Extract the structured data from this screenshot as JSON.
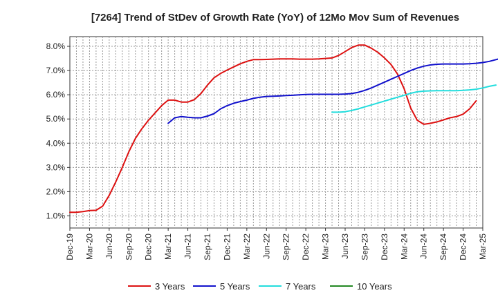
{
  "chart_data": {
    "type": "line",
    "title": "[7264]  Trend of StDev of Growth Rate (YoY) of 12Mo Mov Sum of Revenues",
    "xlabel": "",
    "ylabel": "",
    "ylim": [
      0.5,
      8.4
    ],
    "yticks": [
      1.0,
      2.0,
      3.0,
      4.0,
      5.0,
      6.0,
      7.0,
      8.0
    ],
    "ytick_labels": [
      "1.0%",
      "2.0%",
      "3.0%",
      "4.0%",
      "5.0%",
      "6.0%",
      "7.0%",
      "8.0%"
    ],
    "x_tick_labels": [
      "Dec-19",
      "Mar-20",
      "Jun-20",
      "Sep-20",
      "Dec-20",
      "Mar-21",
      "Jun-21",
      "Sep-21",
      "Dec-21",
      "Mar-22",
      "Jun-22",
      "Sep-22",
      "Dec-22",
      "Mar-23",
      "Jun-23",
      "Sep-23",
      "Dec-23",
      "Mar-24",
      "Jun-24",
      "Sep-24",
      "Dec-24",
      "Mar-25"
    ],
    "x_range_months": [
      0,
      63
    ],
    "grid": true,
    "legend_position": "bottom",
    "series": [
      {
        "name": "3 Years",
        "color": "#dd1111",
        "start_month": 0,
        "values": [
          1.15,
          1.15,
          1.18,
          1.22,
          1.23,
          1.4,
          1.85,
          2.4,
          3.0,
          3.65,
          4.2,
          4.6,
          4.95,
          5.25,
          5.55,
          5.78,
          5.78,
          5.7,
          5.7,
          5.8,
          6.05,
          6.4,
          6.7,
          6.88,
          7.02,
          7.15,
          7.28,
          7.38,
          7.45,
          7.45,
          7.46,
          7.47,
          7.48,
          7.48,
          7.48,
          7.47,
          7.47,
          7.47,
          7.48,
          7.5,
          7.52,
          7.62,
          7.78,
          7.95,
          8.05,
          8.05,
          7.92,
          7.75,
          7.52,
          7.25,
          6.85,
          6.25,
          5.45,
          4.95,
          4.78,
          4.82,
          4.88,
          4.96,
          5.05,
          5.1,
          5.2,
          5.42,
          5.75
        ]
      },
      {
        "name": "5 Years",
        "color": "#1111cc",
        "start_month": 15,
        "values": [
          4.82,
          5.05,
          5.1,
          5.07,
          5.05,
          5.05,
          5.12,
          5.22,
          5.42,
          5.55,
          5.65,
          5.72,
          5.78,
          5.85,
          5.9,
          5.93,
          5.94,
          5.95,
          5.97,
          5.98,
          6.0,
          6.01,
          6.02,
          6.02,
          6.02,
          6.02,
          6.02,
          6.03,
          6.05,
          6.1,
          6.18,
          6.28,
          6.4,
          6.52,
          6.64,
          6.76,
          6.88,
          7.0,
          7.1,
          7.18,
          7.23,
          7.26,
          7.27,
          7.27,
          7.27,
          7.27,
          7.28,
          7.3,
          7.33,
          7.38,
          7.45,
          7.52
        ]
      },
      {
        "name": "7 Years",
        "color": "#22dddd",
        "start_month": 40,
        "values": [
          5.28,
          5.28,
          5.3,
          5.35,
          5.42,
          5.5,
          5.58,
          5.66,
          5.74,
          5.82,
          5.9,
          5.98,
          6.06,
          6.12,
          6.15,
          6.16,
          6.17,
          6.17,
          6.17,
          6.17,
          6.18,
          6.2,
          6.23,
          6.28,
          6.35,
          6.4
        ]
      },
      {
        "name": "10 Years",
        "color": "#228822",
        "start_month": 0,
        "values": []
      }
    ]
  }
}
